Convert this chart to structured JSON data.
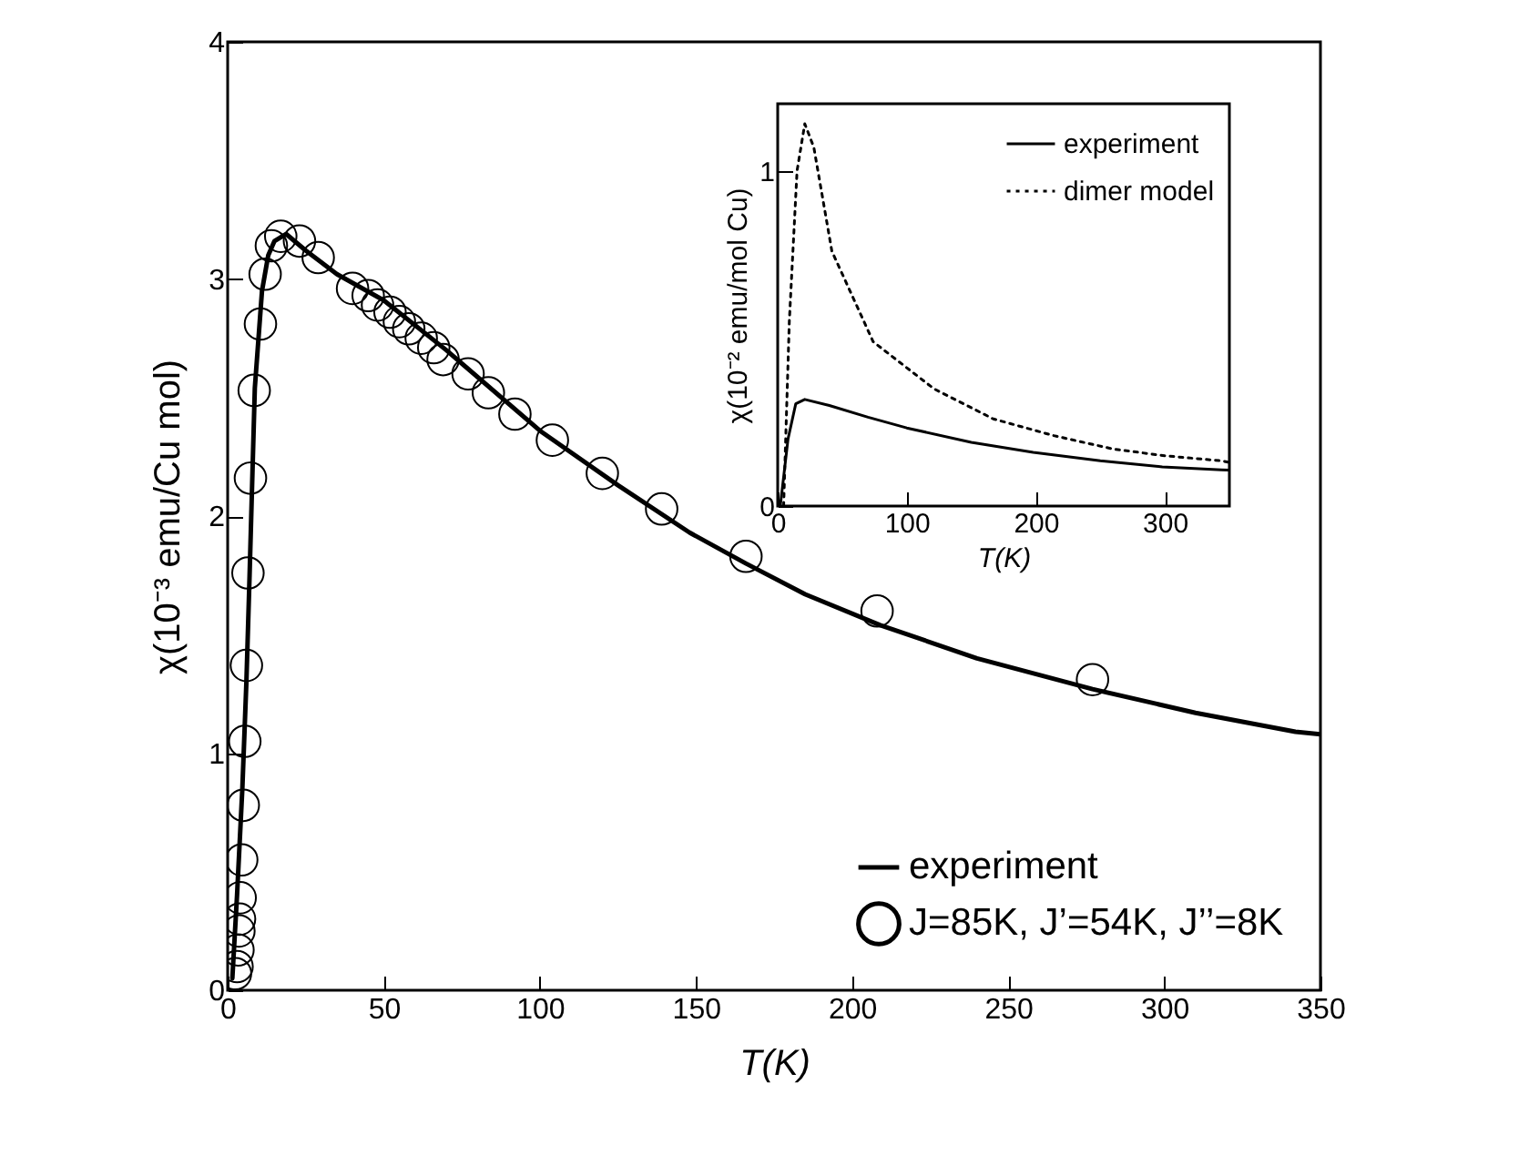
{
  "chart_data": [
    {
      "type": "line",
      "xlabel": "T(K)",
      "ylabel": "χ(10⁻³ emu/Cu mol)",
      "xlim": [
        0,
        350
      ],
      "xticks": [
        0,
        50,
        100,
        150,
        200,
        250,
        300,
        350
      ],
      "ylim": [
        0,
        4
      ],
      "yticks": [
        0,
        1,
        2,
        3,
        4
      ],
      "grid": false,
      "legend": "bottom right",
      "series": [
        {
          "name": "experiment",
          "color": "#000000",
          "line_style": "solid",
          "x": [
            1.5,
            3,
            4.7,
            6,
            7,
            8.7,
            11,
            13,
            15,
            18.7,
            25,
            35,
            50,
            70,
            100,
            125,
            148,
            166,
            185,
            209,
            240,
            277,
            310,
            342,
            350
          ],
          "values": [
            0.05,
            0.4,
            0.85,
            1.3,
            1.74,
            2.54,
            2.95,
            3.1,
            3.16,
            3.19,
            3.12,
            3.02,
            2.91,
            2.7,
            2.36,
            2.13,
            1.93,
            1.8,
            1.67,
            1.54,
            1.4,
            1.27,
            1.17,
            1.09,
            1.08
          ]
        },
        {
          "name": "J=85K, J’=54K, J’’=8K",
          "type": "scatter",
          "marker": "circle",
          "color": "#000000",
          "x": [
            2.5,
            3,
            3.3,
            3.6,
            3.8,
            4,
            4.5,
            5,
            5.5,
            6,
            6.5,
            7.3,
            8.5,
            10.5,
            12,
            14,
            17,
            23,
            29,
            40,
            45,
            48,
            52,
            55,
            58,
            62,
            66,
            69,
            77,
            83.5,
            92,
            104,
            120,
            139,
            166,
            208,
            277
          ],
          "values": [
            0.07,
            0.1,
            0.17,
            0.25,
            0.3,
            0.39,
            0.55,
            0.78,
            1.05,
            1.37,
            1.76,
            2.16,
            2.53,
            2.81,
            3.02,
            3.14,
            3.18,
            3.16,
            3.09,
            2.96,
            2.93,
            2.89,
            2.86,
            2.82,
            2.79,
            2.75,
            2.71,
            2.66,
            2.6,
            2.52,
            2.43,
            2.32,
            2.18,
            2.03,
            1.83,
            1.6,
            1.31
          ]
        }
      ]
    },
    {
      "type": "line",
      "xlabel": "T(K)",
      "ylabel": "χ(10⁻² emu/mol Cu)",
      "xlim": [
        0,
        350
      ],
      "xticks": [
        0,
        100,
        200,
        300
      ],
      "ylim": [
        0,
        1.2
      ],
      "yticks": [
        0,
        1
      ],
      "grid": false,
      "legend": "top right",
      "series": [
        {
          "name": "experiment",
          "color": "#000000",
          "line_style": "solid",
          "x": [
            2,
            8,
            14,
            21,
            40,
            70,
            100,
            150,
            198,
            250,
            298,
            344,
            350
          ],
          "values": [
            0,
            0.2,
            0.305,
            0.318,
            0.3,
            0.265,
            0.233,
            0.19,
            0.16,
            0.135,
            0.117,
            0.108,
            0.107
          ]
        },
        {
          "name": "dimer model",
          "color": "#000000",
          "line_style": "dotted",
          "x": [
            4.6,
            9,
            15,
            21,
            28,
            42,
            74,
            121,
            167,
            214,
            260,
            300,
            344,
            350
          ],
          "values": [
            0,
            0.55,
            1.0,
            1.14,
            1.07,
            0.76,
            0.49,
            0.35,
            0.26,
            0.21,
            0.17,
            0.15,
            0.135,
            0.13
          ]
        }
      ]
    }
  ]
}
